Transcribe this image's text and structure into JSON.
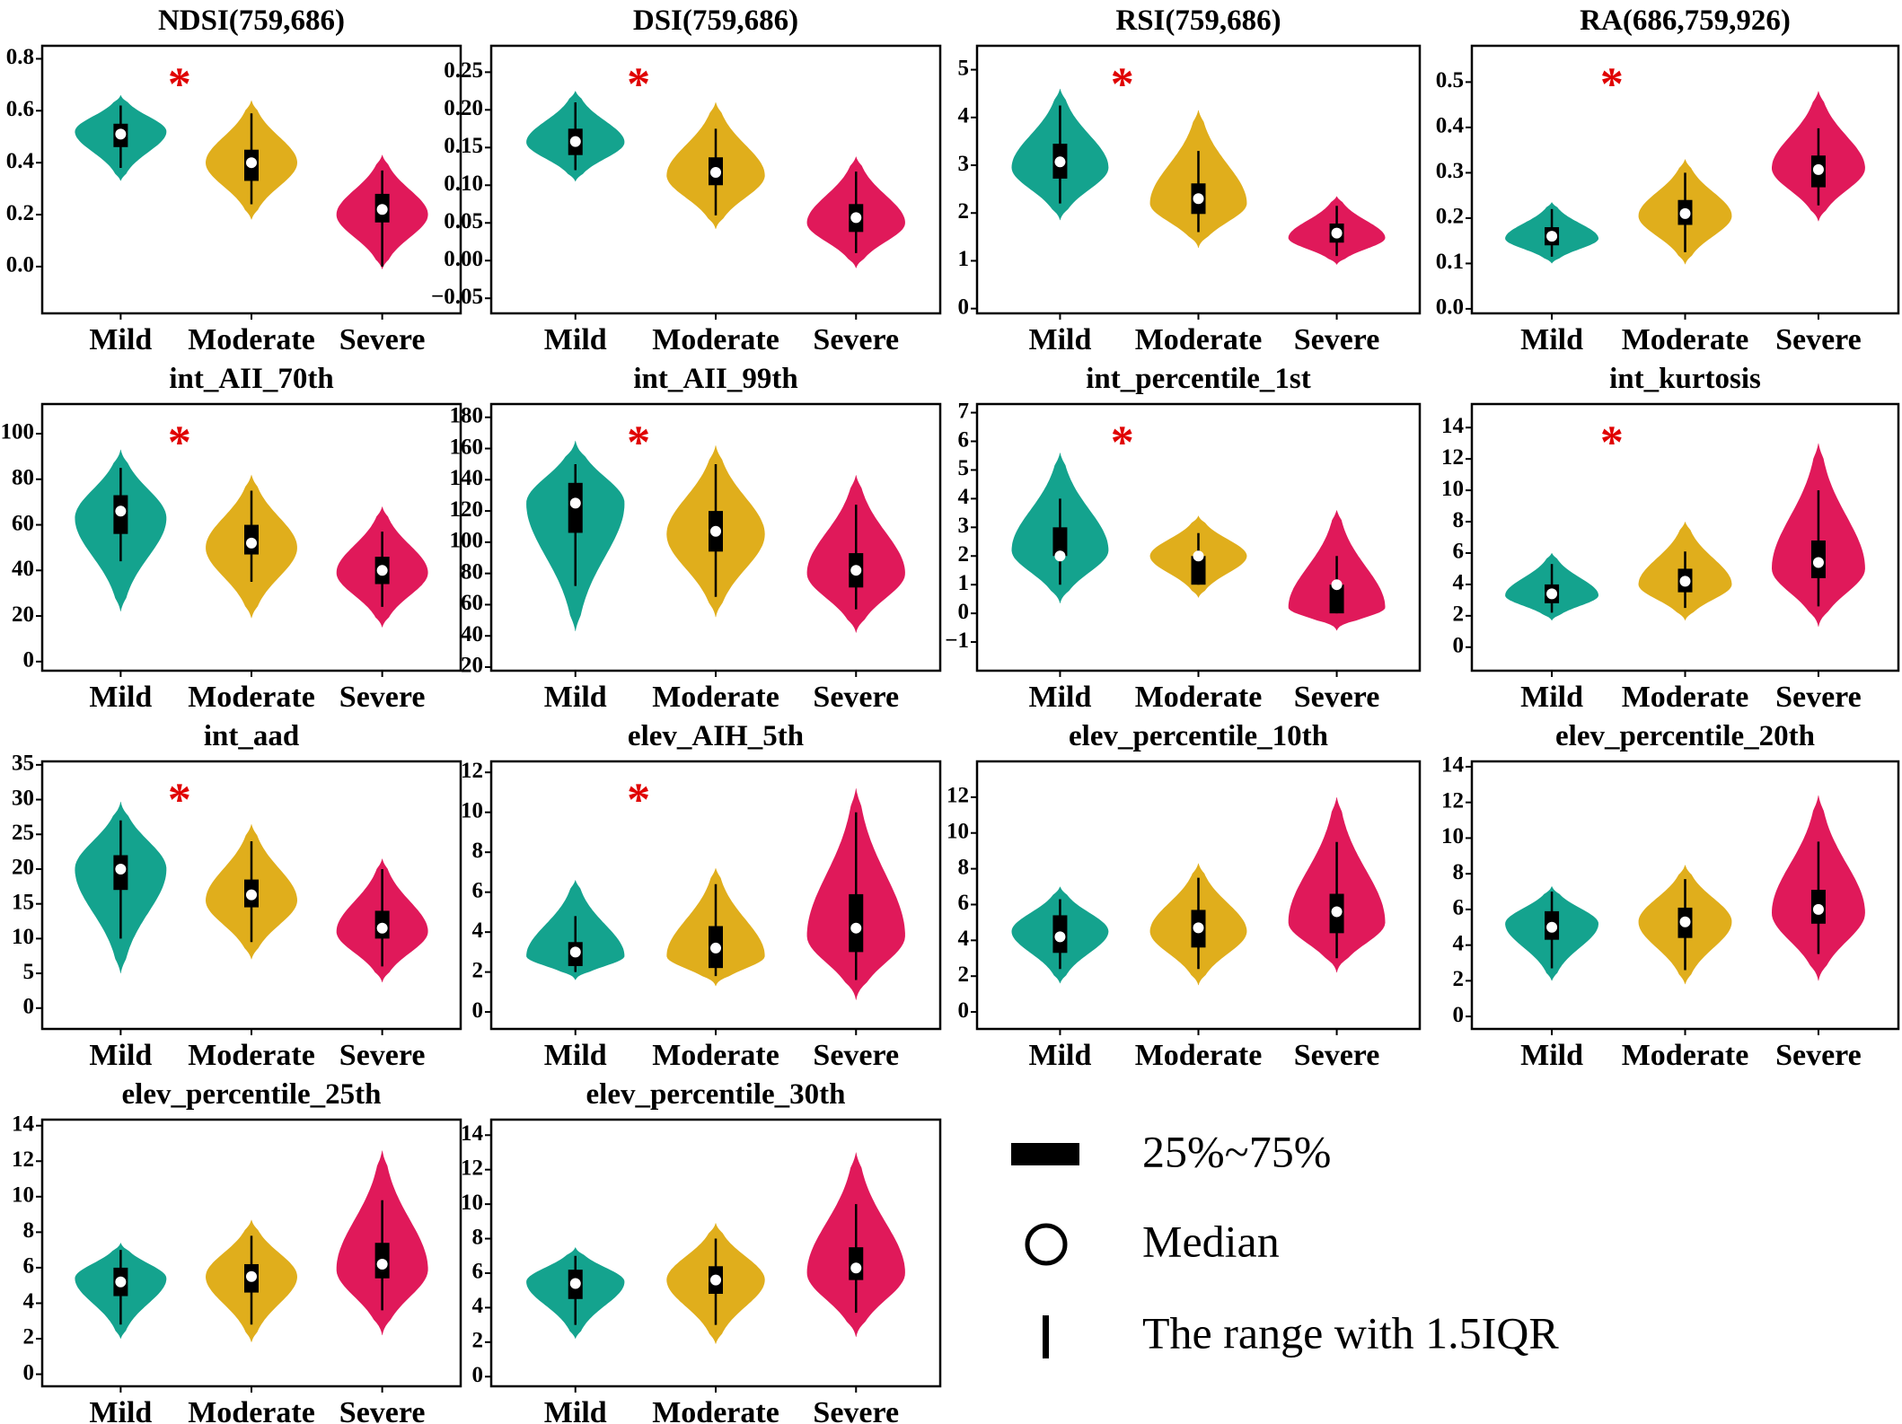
{
  "colors": {
    "Mild": "#14a38e",
    "Moderate": "#e0ae1c",
    "Severe": "#e0195a",
    "star": "#e00000"
  },
  "legend": {
    "box_label": "25%~75%",
    "median_label": "Median",
    "range_label": "The range with 1.5IQR"
  },
  "chart_data": [
    {
      "type": "violin",
      "title": "NDSI(759,686)",
      "significant": true,
      "ylim": [
        -0.18,
        0.85
      ],
      "yticks": [
        "0.0",
        "0.2",
        "0.4",
        "0.6",
        "0.8"
      ],
      "categories": [
        "Mild",
        "Moderate",
        "Severe"
      ],
      "groups": [
        {
          "median": 0.51,
          "q1": 0.46,
          "q3": 0.55,
          "whisker": [
            0.38,
            0.62
          ],
          "range": [
            0.33,
            0.66
          ],
          "mode": 0.52
        },
        {
          "median": 0.4,
          "q1": 0.33,
          "q3": 0.45,
          "whisker": [
            0.24,
            0.59
          ],
          "range": [
            0.18,
            0.64
          ],
          "mode": 0.4
        },
        {
          "median": 0.22,
          "q1": 0.17,
          "q3": 0.28,
          "whisker": [
            0.0,
            0.37
          ],
          "range": [
            -0.01,
            0.43
          ],
          "mode": 0.2
        }
      ]
    },
    {
      "type": "violin",
      "title": "DSI(759,686)",
      "significant": true,
      "ylim": [
        -0.07,
        0.285
      ],
      "yticks": [
        "−0.05",
        "0.00",
        "0.05",
        "0.10",
        "0.15",
        "0.20",
        "0.25"
      ],
      "categories": [
        "Mild",
        "Moderate",
        "Severe"
      ],
      "groups": [
        {
          "median": 0.158,
          "q1": 0.14,
          "q3": 0.175,
          "whisker": [
            0.12,
            0.21
          ],
          "range": [
            0.105,
            0.225
          ],
          "mode": 0.157
        },
        {
          "median": 0.117,
          "q1": 0.1,
          "q3": 0.137,
          "whisker": [
            0.06,
            0.175
          ],
          "range": [
            0.042,
            0.21
          ],
          "mode": 0.113
        },
        {
          "median": 0.057,
          "q1": 0.038,
          "q3": 0.075,
          "whisker": [
            0.01,
            0.118
          ],
          "range": [
            -0.01,
            0.138
          ],
          "mode": 0.05
        }
      ]
    },
    {
      "type": "violin",
      "title": "RSI(759,686)",
      "significant": true,
      "ylim": [
        -0.1,
        5.5
      ],
      "yticks": [
        "0",
        "1",
        "2",
        "3",
        "4",
        "5"
      ],
      "categories": [
        "Mild",
        "Moderate",
        "Severe"
      ],
      "groups": [
        {
          "median": 3.07,
          "q1": 2.72,
          "q3": 3.45,
          "whisker": [
            2.2,
            4.25
          ],
          "range": [
            1.85,
            4.6
          ],
          "mode": 2.95
        },
        {
          "median": 2.3,
          "q1": 1.98,
          "q3": 2.62,
          "whisker": [
            1.6,
            3.3
          ],
          "range": [
            1.27,
            4.15
          ],
          "mode": 2.2
        },
        {
          "median": 1.58,
          "q1": 1.38,
          "q3": 1.78,
          "whisker": [
            1.1,
            2.15
          ],
          "range": [
            0.92,
            2.35
          ],
          "mode": 1.48
        }
      ]
    },
    {
      "type": "violin",
      "title": "RA(686,759,926)",
      "significant": true,
      "ylim": [
        -0.01,
        0.58
      ],
      "yticks": [
        "0.0",
        "0.1",
        "0.2",
        "0.3",
        "0.4",
        "0.5"
      ],
      "categories": [
        "Mild",
        "Moderate",
        "Severe"
      ],
      "groups": [
        {
          "median": 0.16,
          "q1": 0.14,
          "q3": 0.18,
          "whisker": [
            0.115,
            0.22
          ],
          "range": [
            0.1,
            0.235
          ],
          "mode": 0.155
        },
        {
          "median": 0.21,
          "q1": 0.185,
          "q3": 0.24,
          "whisker": [
            0.125,
            0.3
          ],
          "range": [
            0.098,
            0.33
          ],
          "mode": 0.205
        },
        {
          "median": 0.307,
          "q1": 0.268,
          "q3": 0.338,
          "whisker": [
            0.228,
            0.398
          ],
          "range": [
            0.193,
            0.48
          ],
          "mode": 0.31
        }
      ]
    },
    {
      "type": "violin",
      "title": "int_AII_70th",
      "significant": true,
      "ylim": [
        -4,
        113
      ],
      "yticks": [
        "0",
        "20",
        "40",
        "60",
        "80",
        "100"
      ],
      "categories": [
        "Mild",
        "Moderate",
        "Severe"
      ],
      "groups": [
        {
          "median": 66,
          "q1": 56,
          "q3": 73,
          "whisker": [
            44,
            85
          ],
          "range": [
            22,
            93
          ],
          "mode": 63
        },
        {
          "median": 52,
          "q1": 47,
          "q3": 60,
          "whisker": [
            35,
            75
          ],
          "range": [
            19,
            82
          ],
          "mode": 50
        },
        {
          "median": 40,
          "q1": 34,
          "q3": 46,
          "whisker": [
            24,
            57
          ],
          "range": [
            15,
            68
          ],
          "mode": 39
        }
      ]
    },
    {
      "type": "violin",
      "title": "int_AII_99th",
      "significant": true,
      "ylim": [
        17.7,
        188.5
      ],
      "yticks": [
        "20",
        "40",
        "60",
        "80",
        "100",
        "120",
        "140",
        "160",
        "180"
      ],
      "categories": [
        "Mild",
        "Moderate",
        "Severe"
      ],
      "groups": [
        {
          "median": 125,
          "q1": 106,
          "q3": 138,
          "whisker": [
            72,
            150
          ],
          "range": [
            43,
            165
          ],
          "mode": 125
        },
        {
          "median": 107,
          "q1": 94,
          "q3": 120,
          "whisker": [
            65,
            150
          ],
          "range": [
            52,
            162
          ],
          "mode": 105
        },
        {
          "median": 82,
          "q1": 71,
          "q3": 93,
          "whisker": [
            57,
            124
          ],
          "range": [
            42,
            143
          ],
          "mode": 80
        }
      ]
    },
    {
      "type": "violin",
      "title": "int_percentile_1st",
      "significant": true,
      "ylim": [
        -2,
        7.3
      ],
      "yticks": [
        "−1",
        "0",
        "1",
        "2",
        "3",
        "4",
        "5",
        "6",
        "7"
      ],
      "categories": [
        "Mild",
        "Moderate",
        "Severe"
      ],
      "groups": [
        {
          "median": 2,
          "q1": 2,
          "q3": 3,
          "whisker": [
            1,
            4
          ],
          "range": [
            0.35,
            5.6
          ],
          "mode": 2.2
        },
        {
          "median": 2,
          "q1": 1,
          "q3": 2,
          "whisker": [
            1,
            2.8
          ],
          "range": [
            0.55,
            3.4
          ],
          "mode": 2
        },
        {
          "median": 1,
          "q1": 0,
          "q3": 1,
          "whisker": [
            0,
            2
          ],
          "range": [
            -0.6,
            3.6
          ],
          "mode": 0.2
        }
      ]
    },
    {
      "type": "violin",
      "title": "int_kurtosis",
      "significant": true,
      "ylim": [
        -1.5,
        15.5
      ],
      "yticks": [
        "0",
        "2",
        "4",
        "6",
        "8",
        "10",
        "12",
        "14"
      ],
      "categories": [
        "Mild",
        "Moderate",
        "Severe"
      ],
      "groups": [
        {
          "median": 3.4,
          "q1": 2.8,
          "q3": 4,
          "whisker": [
            2.2,
            5.3
          ],
          "range": [
            1.7,
            6
          ],
          "mode": 3.3
        },
        {
          "median": 4.2,
          "q1": 3.5,
          "q3": 5,
          "whisker": [
            2.5,
            6.1
          ],
          "range": [
            1.7,
            8
          ],
          "mode": 4
        },
        {
          "median": 5.4,
          "q1": 4.4,
          "q3": 6.8,
          "whisker": [
            2.6,
            10
          ],
          "range": [
            1.3,
            13
          ],
          "mode": 5
        }
      ]
    },
    {
      "type": "violin",
      "title": "int_aad",
      "significant": true,
      "ylim": [
        -3,
        35.5
      ],
      "yticks": [
        "0",
        "5",
        "10",
        "15",
        "20",
        "25",
        "30",
        "35"
      ],
      "categories": [
        "Mild",
        "Moderate",
        "Severe"
      ],
      "groups": [
        {
          "median": 20,
          "q1": 17,
          "q3": 22,
          "whisker": [
            10,
            27
          ],
          "range": [
            5,
            29.7
          ],
          "mode": 20
        },
        {
          "median": 16.3,
          "q1": 14.5,
          "q3": 18.5,
          "whisker": [
            9.5,
            24
          ],
          "range": [
            7,
            26.5
          ],
          "mode": 15.5
        },
        {
          "median": 11.5,
          "q1": 10,
          "q3": 14,
          "whisker": [
            6,
            20
          ],
          "range": [
            3.7,
            21.5
          ],
          "mode": 11
        }
      ]
    },
    {
      "type": "violin",
      "title": "elev_AIH_5th",
      "significant": true,
      "ylim": [
        -0.85,
        12.55
      ],
      "yticks": [
        "0",
        "2",
        "4",
        "6",
        "8",
        "10",
        "12"
      ],
      "categories": [
        "Mild",
        "Moderate",
        "Severe"
      ],
      "groups": [
        {
          "median": 3,
          "q1": 2.3,
          "q3": 3.5,
          "whisker": [
            2,
            4.8
          ],
          "range": [
            1.6,
            6.6
          ],
          "mode": 2.8
        },
        {
          "median": 3.2,
          "q1": 2.2,
          "q3": 4.3,
          "whisker": [
            1.8,
            6.4
          ],
          "range": [
            1.3,
            7.2
          ],
          "mode": 2.8
        },
        {
          "median": 4.2,
          "q1": 3,
          "q3": 5.9,
          "whisker": [
            1.6,
            10
          ],
          "range": [
            0.6,
            11.2
          ],
          "mode": 3.8
        }
      ]
    },
    {
      "type": "violin",
      "title": "elev_percentile_10th",
      "significant": false,
      "ylim": [
        -0.95,
        14
      ],
      "yticks": [
        "0",
        "2",
        "4",
        "6",
        "8",
        "10",
        "12"
      ],
      "categories": [
        "Mild",
        "Moderate",
        "Severe"
      ],
      "groups": [
        {
          "median": 4.2,
          "q1": 3.3,
          "q3": 5.4,
          "whisker": [
            2.4,
            6.3
          ],
          "range": [
            1.6,
            7
          ],
          "mode": 4.5
        },
        {
          "median": 4.7,
          "q1": 3.6,
          "q3": 5.7,
          "whisker": [
            2.4,
            7.5
          ],
          "range": [
            1.5,
            8.3
          ],
          "mode": 4.5
        },
        {
          "median": 5.6,
          "q1": 4.4,
          "q3": 6.6,
          "whisker": [
            3,
            9.5
          ],
          "range": [
            2.2,
            12
          ],
          "mode": 5
        }
      ]
    },
    {
      "type": "violin",
      "title": "elev_percentile_20th",
      "significant": false,
      "ylim": [
        -0.7,
        14.3
      ],
      "yticks": [
        "0",
        "2",
        "4",
        "6",
        "8",
        "10",
        "12",
        "14"
      ],
      "categories": [
        "Mild",
        "Moderate",
        "Severe"
      ],
      "groups": [
        {
          "median": 5,
          "q1": 4.3,
          "q3": 5.9,
          "whisker": [
            2.7,
            7
          ],
          "range": [
            2,
            7.3
          ],
          "mode": 5.2
        },
        {
          "median": 5.3,
          "q1": 4.4,
          "q3": 6.1,
          "whisker": [
            2.6,
            7.7
          ],
          "range": [
            1.8,
            8.5
          ],
          "mode": 5.3
        },
        {
          "median": 6,
          "q1": 5.2,
          "q3": 7.1,
          "whisker": [
            3.5,
            9.8
          ],
          "range": [
            2,
            12.4
          ],
          "mode": 5.8
        }
      ]
    },
    {
      "type": "violin",
      "title": "elev_percentile_25th",
      "significant": false,
      "ylim": [
        -0.68,
        14.34
      ],
      "yticks": [
        "0",
        "2",
        "4",
        "6",
        "8",
        "10",
        "12",
        "14"
      ],
      "categories": [
        "Mild",
        "Moderate",
        "Severe"
      ],
      "groups": [
        {
          "median": 5.2,
          "q1": 4.4,
          "q3": 6,
          "whisker": [
            2.8,
            7
          ],
          "range": [
            2,
            7.4
          ],
          "mode": 5.4
        },
        {
          "median": 5.5,
          "q1": 4.6,
          "q3": 6.2,
          "whisker": [
            2.8,
            7.8
          ],
          "range": [
            1.8,
            8.7
          ],
          "mode": 5.5
        },
        {
          "median": 6.2,
          "q1": 5.4,
          "q3": 7.4,
          "whisker": [
            3.6,
            9.8
          ],
          "range": [
            2.2,
            12.6
          ],
          "mode": 5.9
        }
      ]
    },
    {
      "type": "violin",
      "title": "elev_percentile_30th",
      "significant": false,
      "ylim": [
        -0.56,
        14.9
      ],
      "yticks": [
        "0",
        "2",
        "4",
        "6",
        "8",
        "10",
        "12",
        "14"
      ],
      "categories": [
        "Mild",
        "Moderate",
        "Severe"
      ],
      "groups": [
        {
          "median": 5.4,
          "q1": 4.5,
          "q3": 6.2,
          "whisker": [
            3,
            7
          ],
          "range": [
            2.2,
            7.5
          ],
          "mode": 5.5
        },
        {
          "median": 5.6,
          "q1": 4.8,
          "q3": 6.4,
          "whisker": [
            3,
            8
          ],
          "range": [
            1.9,
            8.9
          ],
          "mode": 5.6
        },
        {
          "median": 6.3,
          "q1": 5.6,
          "q3": 7.5,
          "whisker": [
            3.7,
            10
          ],
          "range": [
            2.3,
            13
          ],
          "mode": 6
        }
      ]
    }
  ]
}
